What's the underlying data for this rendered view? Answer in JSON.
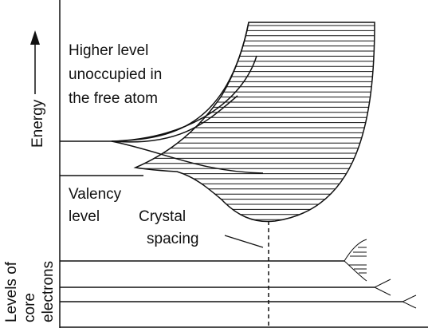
{
  "labels": {
    "energy": "Energy",
    "higher_level": [
      "Higher level",
      "unoccupied in",
      "the free atom"
    ],
    "valency_level": [
      "Valency",
      "level"
    ],
    "crystal_spacing": [
      "Crystal",
      "spacing"
    ],
    "core_levels": [
      "Levels of",
      "core",
      "electrons"
    ]
  },
  "colors": {
    "ink": "#111111",
    "background": "#ffffff"
  }
}
